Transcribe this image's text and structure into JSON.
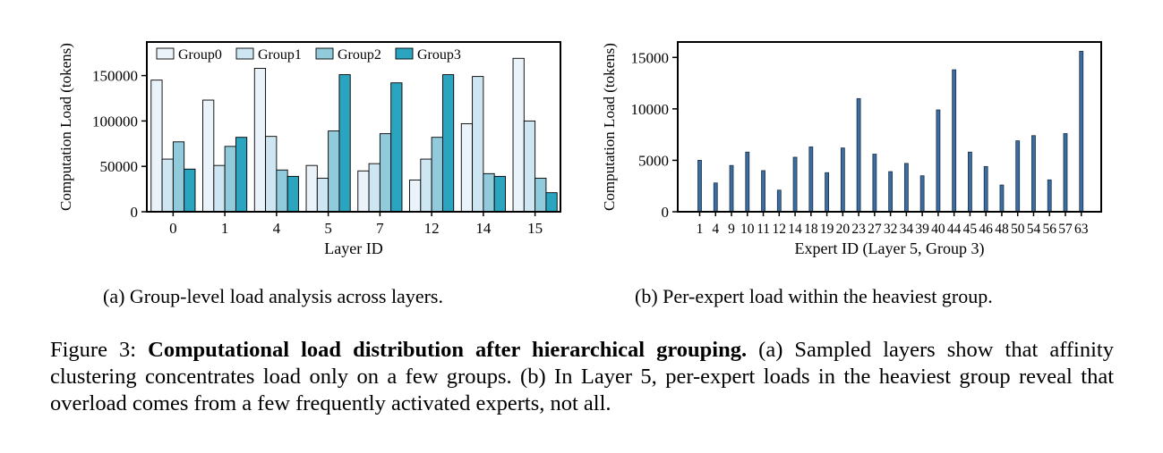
{
  "charts": [
    {
      "type": "bar",
      "categories": [
        "0",
        "1",
        "4",
        "5",
        "7",
        "12",
        "14",
        "15"
      ],
      "series": [
        {
          "name": "Group0",
          "color": "#eaf2fa",
          "values": [
            145000,
            123000,
            158000,
            51000,
            45000,
            35000,
            97000,
            169000
          ]
        },
        {
          "name": "Group1",
          "color": "#cde6f1",
          "values": [
            58000,
            51000,
            83000,
            37000,
            53000,
            58000,
            149000,
            100000
          ]
        },
        {
          "name": "Group2",
          "color": "#91cadb",
          "values": [
            77000,
            72000,
            46000,
            89000,
            86000,
            82000,
            42000,
            37000
          ]
        },
        {
          "name": "Group3",
          "color": "#2ba4c0",
          "values": [
            47000,
            82000,
            39000,
            151000,
            142000,
            151000,
            39000,
            21000
          ]
        }
      ],
      "yticks": [
        "0",
        "50000",
        "100000",
        "150000"
      ],
      "ylim": [
        0,
        187000
      ],
      "xlabel": "Layer ID",
      "ylabel": "Computation Load (tokens)",
      "legend_position": "top-left"
    },
    {
      "type": "bar",
      "categories": [
        "1",
        "4",
        "9",
        "10",
        "11",
        "12",
        "14",
        "18",
        "19",
        "20",
        "23",
        "27",
        "32",
        "34",
        "39",
        "40",
        "44",
        "45",
        "46",
        "48",
        "50",
        "54",
        "56",
        "57",
        "63"
      ],
      "values": [
        5000,
        2800,
        4500,
        5800,
        4000,
        2100,
        5300,
        6300,
        3800,
        6200,
        11000,
        5600,
        3900,
        4700,
        3500,
        9900,
        13800,
        5800,
        4400,
        2600,
        6900,
        7400,
        3100,
        7600,
        15600
      ],
      "color": "#3a6ea0",
      "yticks": [
        "0",
        "5000",
        "10000",
        "15000"
      ],
      "ylim": [
        0,
        16500
      ],
      "xlabel": "Expert ID  (Layer 5, Group 3)",
      "ylabel": "Computation Load (tokens)"
    }
  ],
  "captions": {
    "a": "(a) Group-level load analysis across layers.",
    "b": "(b) Per-expert load within the heaviest group."
  },
  "figure_caption": {
    "label": "Figure 3: ",
    "bold": "Computational load distribution after hierarchical grouping.",
    "rest": " (a) Sampled layers show that affinity clustering concentrates load only on a few groups.  (b) In Layer 5, per-expert loads in the heaviest group reveal that overload comes from a few frequently activated experts, not all."
  }
}
